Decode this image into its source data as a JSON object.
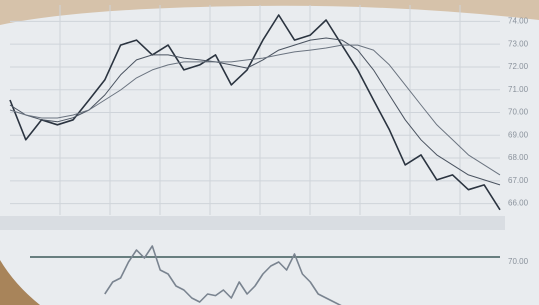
{
  "chart_data": [
    {
      "type": "line",
      "grid": true,
      "x": [
        0,
        1,
        2,
        3,
        4,
        5,
        6,
        7,
        8,
        9,
        10,
        11,
        12,
        13,
        14,
        15,
        16,
        17,
        18,
        19,
        20,
        21,
        22,
        23,
        24,
        25,
        26,
        27,
        28,
        29,
        30,
        31
      ],
      "xlim": [
        0,
        31
      ],
      "ylim": [
        65.5,
        74.5
      ],
      "yticks": [
        {
          "value": 66,
          "label": "66.00"
        },
        {
          "value": 67,
          "label": "67.00"
        },
        {
          "value": 68,
          "label": "68.00"
        },
        {
          "value": 69,
          "label": "69.00"
        },
        {
          "value": 70,
          "label": "70.00"
        },
        {
          "value": 71,
          "label": "71.00"
        },
        {
          "value": 72,
          "label": "72.00"
        },
        {
          "value": 73,
          "label": "73.00"
        },
        {
          "value": 74,
          "label": "74.00"
        }
      ],
      "series": [
        {
          "color": "#2b3440",
          "values": [
            70.55,
            68.8,
            69.68,
            69.46,
            69.68,
            70.55,
            71.43,
            72.96,
            73.18,
            72.53,
            72.96,
            71.87,
            72.09,
            72.53,
            71.21,
            71.87,
            73.18,
            74.28,
            73.18,
            73.4,
            74.06,
            72.96,
            71.87,
            70.55,
            69.24,
            67.7,
            68.14,
            67.04,
            67.26,
            66.61,
            66.82,
            65.73
          ]
        },
        {
          "color": "#4a5360",
          "values": [
            70.33,
            69.89,
            69.68,
            69.59,
            69.77,
            70.11,
            70.77,
            71.65,
            72.31,
            72.53,
            72.53,
            72.39,
            72.31,
            72.22,
            72.09,
            71.95,
            72.31,
            72.74,
            72.96,
            73.18,
            73.27,
            73.18,
            72.74,
            71.87,
            70.77,
            69.68,
            68.8,
            68.14,
            67.7,
            67.26,
            67.04,
            66.82
          ]
        },
        {
          "color": "#6b7480",
          "values": [
            70.11,
            69.89,
            69.76,
            69.76,
            69.89,
            70.11,
            70.55,
            70.99,
            71.52,
            71.87,
            72.09,
            72.22,
            72.22,
            72.22,
            72.22,
            72.31,
            72.39,
            72.53,
            72.66,
            72.74,
            72.83,
            72.96,
            72.96,
            72.74,
            72.09,
            71.21,
            70.33,
            69.46,
            68.8,
            68.14,
            67.7,
            67.26
          ]
        }
      ]
    },
    {
      "type": "line",
      "x": [
        6,
        6.5,
        7,
        7.5,
        8,
        8.5,
        9,
        9.5,
        10,
        10.5,
        11,
        11.5,
        12,
        12.5,
        13,
        13.5,
        14,
        14.5,
        15,
        15.5,
        16,
        16.5,
        17,
        17.5,
        18,
        18.5,
        19,
        19.5,
        20,
        20.5,
        21
      ],
      "xlim": [
        0,
        31
      ],
      "ylim": [
        0,
        100
      ],
      "yticks": [
        {
          "value": 70,
          "label": "70.00"
        }
      ],
      "series": [
        {
          "color": "#7a8490",
          "values": [
            30,
            45,
            50,
            70,
            85,
            75,
            90,
            60,
            55,
            40,
            35,
            25,
            20,
            30,
            28,
            35,
            25,
            45,
            30,
            40,
            55,
            65,
            70,
            60,
            80,
            55,
            45,
            30,
            25,
            20,
            15
          ]
        }
      ]
    }
  ]
}
